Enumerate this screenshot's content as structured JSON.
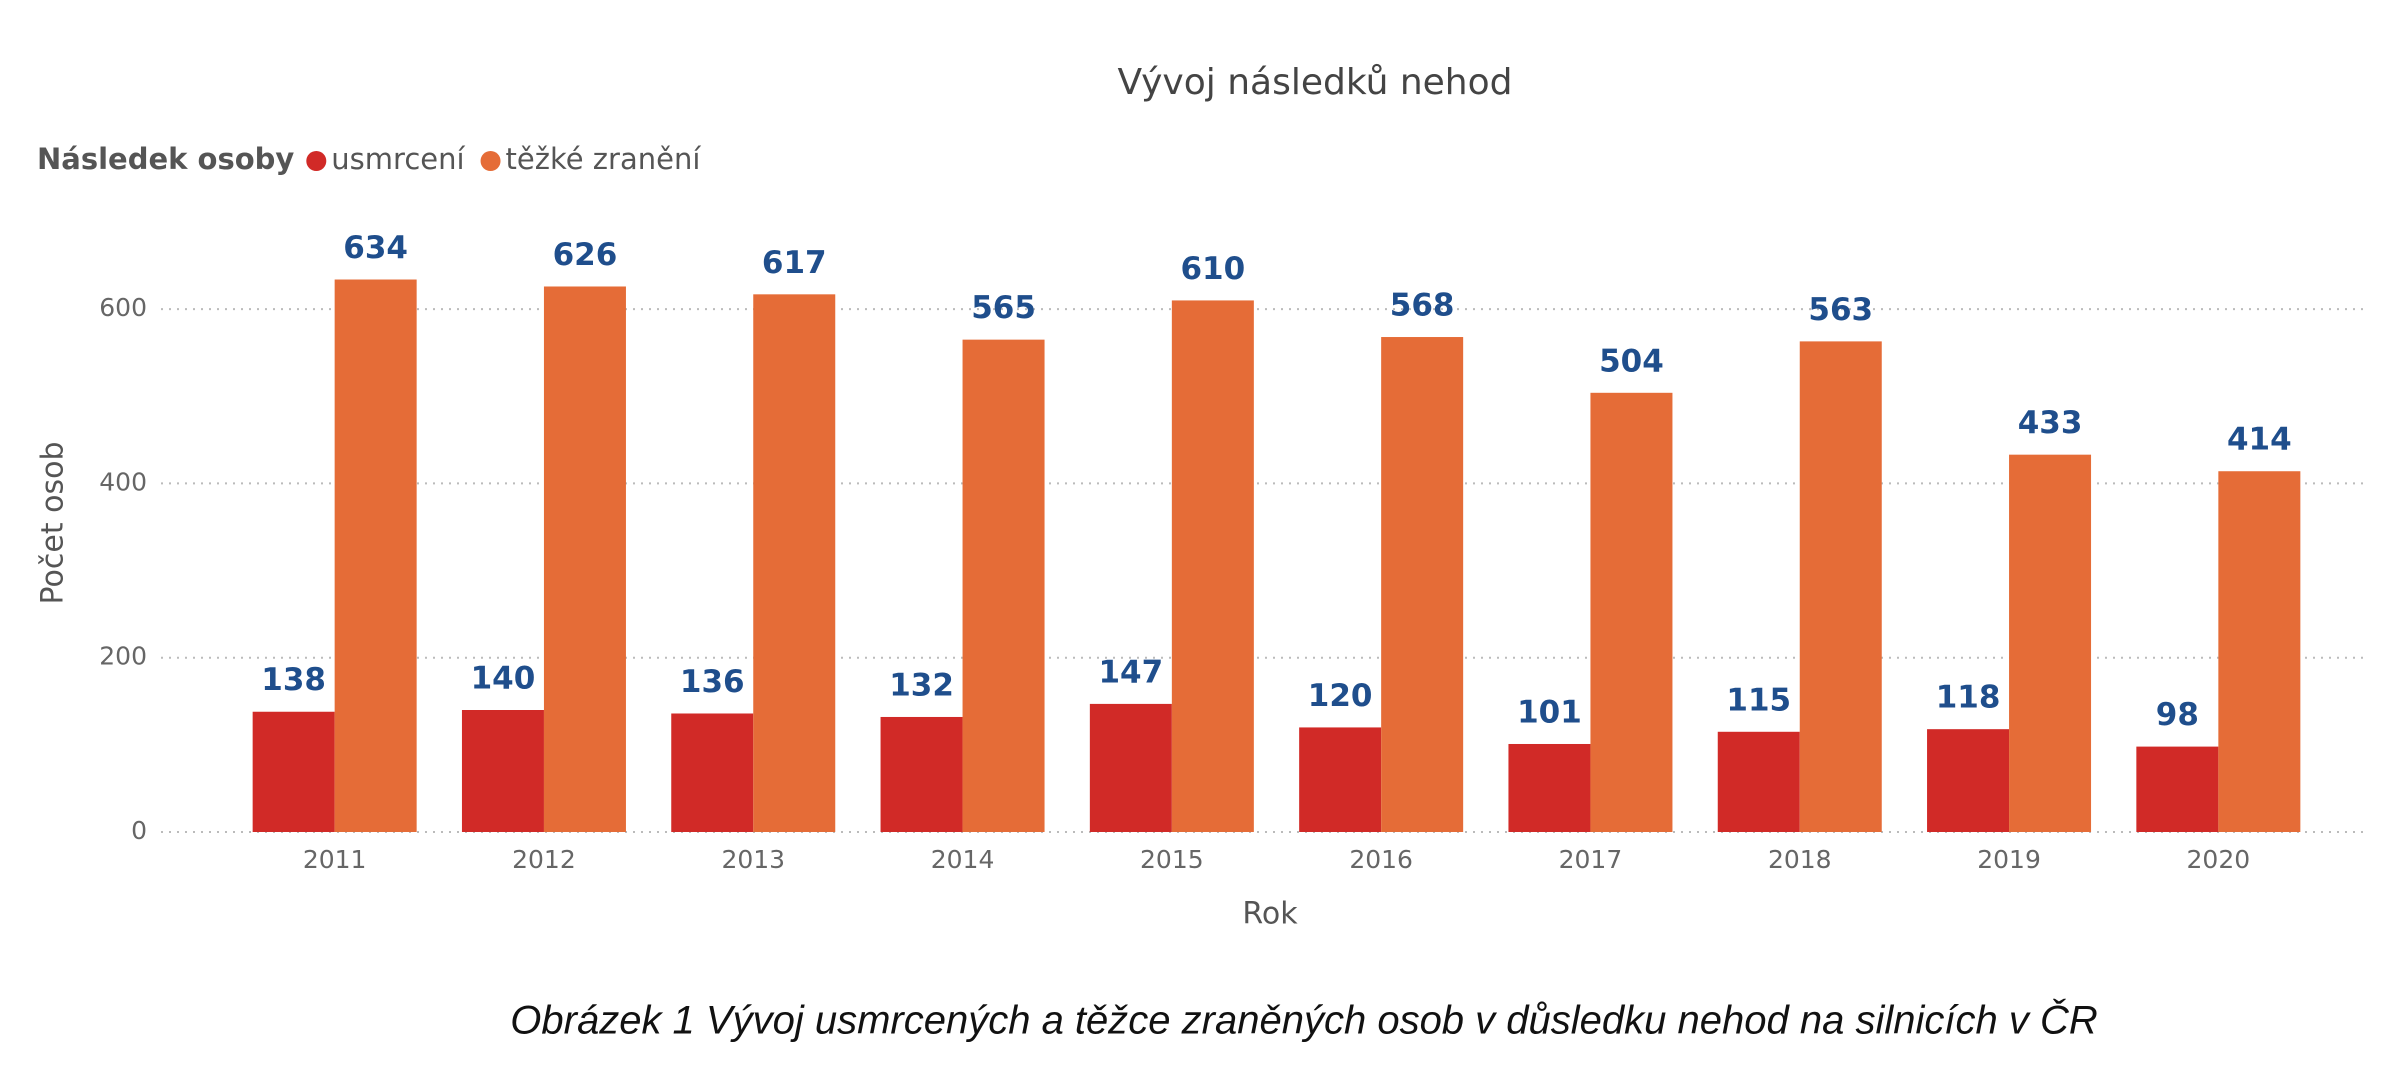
{
  "chart_data": {
    "type": "bar",
    "title": "Vývoj následků nehod",
    "legend_title": "Následek osoby",
    "x_label": "Rok",
    "y_label": "Počet osob",
    "categories": [
      "2011",
      "2012",
      "2013",
      "2014",
      "2015",
      "2016",
      "2017",
      "2018",
      "2019",
      "2020"
    ],
    "series": [
      {
        "name": "usmrcení",
        "color": "#d12a27",
        "values": [
          138,
          140,
          136,
          132,
          147,
          120,
          101,
          115,
          118,
          98
        ]
      },
      {
        "name": "těžké zranění",
        "color": "#e56c37",
        "values": [
          634,
          626,
          617,
          565,
          610,
          568,
          504,
          563,
          433,
          414
        ]
      }
    ],
    "ylim": [
      0,
      700
    ],
    "yticks": [
      0,
      200,
      400,
      600
    ],
    "grid": true,
    "legend": "top-left",
    "caption": "Obrázek 1 Vývoj usmrcených a těžce zraněných osob v důsledku nehod na silnicích v ČR"
  }
}
